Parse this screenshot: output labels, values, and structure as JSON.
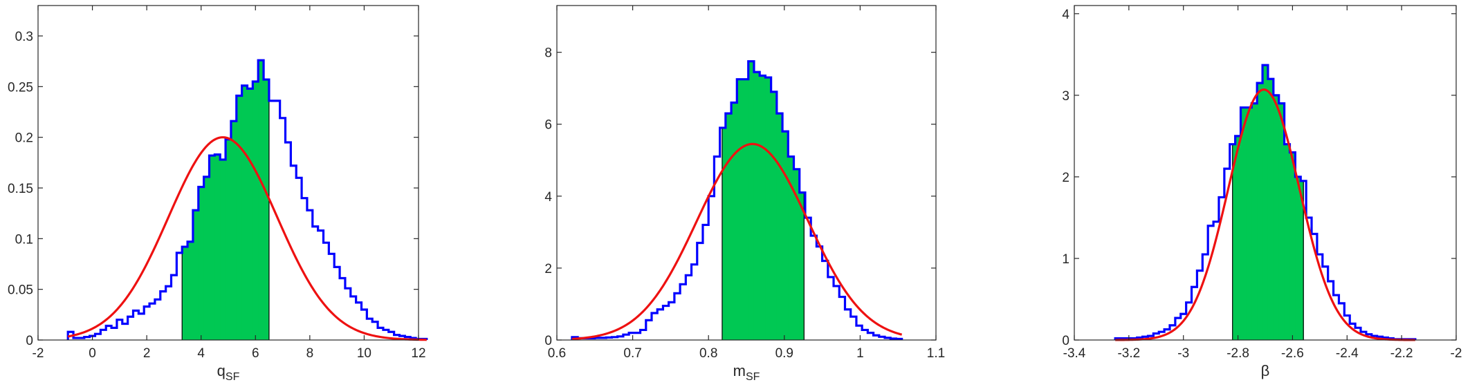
{
  "colors": {
    "histogram": "#0000ff",
    "fill": "#00c853",
    "fit": "#ee1111",
    "axis": "#262626"
  },
  "chart_data": [
    {
      "type": "bar",
      "xlabel_main": "q",
      "xlabel_sub": "SF",
      "xlim": [
        -2,
        12
      ],
      "ylim": [
        0,
        0.33
      ],
      "xticks": [
        -2,
        0,
        2,
        4,
        6,
        8,
        10,
        12
      ],
      "xtick_labels": [
        "-2",
        "0",
        "2",
        "4",
        "6",
        "8",
        "10",
        "12"
      ],
      "yticks": [
        0,
        0.05,
        0.1,
        0.15,
        0.2,
        0.25,
        0.3
      ],
      "ytick_labels": [
        "0",
        "0.05",
        "0.1",
        "0.15",
        "0.2",
        "0.25",
        "0.3"
      ],
      "bin_start": -0.9,
      "bin_width": 0.2,
      "values": [
        0.008,
        0.002,
        0.002,
        0.003,
        0.004,
        0.006,
        0.01,
        0.014,
        0.012,
        0.02,
        0.016,
        0.023,
        0.029,
        0.026,
        0.033,
        0.036,
        0.04,
        0.048,
        0.053,
        0.064,
        0.086,
        0.092,
        0.097,
        0.128,
        0.151,
        0.161,
        0.182,
        0.183,
        0.178,
        0.198,
        0.216,
        0.241,
        0.251,
        0.248,
        0.255,
        0.276,
        0.257,
        0.236,
        0.236,
        0.219,
        0.195,
        0.172,
        0.16,
        0.14,
        0.128,
        0.112,
        0.108,
        0.096,
        0.085,
        0.072,
        0.061,
        0.051,
        0.043,
        0.037,
        0.03,
        0.021,
        0.018,
        0.012,
        0.01,
        0.008,
        0.005,
        0.004,
        0.003,
        0.002,
        0.001,
        0.001
      ],
      "ci": [
        3.3,
        6.5
      ],
      "fit": {
        "mu": 4.8,
        "sigma": 2.0,
        "peak": 0.2
      }
    },
    {
      "type": "bar",
      "xlabel_main": "m",
      "xlabel_sub": "SF",
      "xlim": [
        0.6,
        1.1
      ],
      "ylim": [
        0,
        9.3
      ],
      "xticks": [
        0.6,
        0.7,
        0.8,
        0.9,
        1.0,
        1.1
      ],
      "xtick_labels": [
        "0.6",
        "0.7",
        "0.8",
        "0.9",
        "1",
        "1.1"
      ],
      "yticks": [
        0,
        2,
        4,
        6,
        8
      ],
      "ytick_labels": [
        "0",
        "2",
        "4",
        "6",
        "8"
      ],
      "bin_start": 0.62,
      "bin_width": 0.0075,
      "values": [
        0.08,
        0.05,
        0.05,
        0.05,
        0.06,
        0.06,
        0.07,
        0.08,
        0.1,
        0.15,
        0.2,
        0.2,
        0.28,
        0.55,
        0.75,
        0.85,
        0.95,
        1.05,
        1.3,
        1.55,
        1.8,
        2.1,
        2.7,
        3.2,
        4.0,
        5.1,
        5.9,
        6.3,
        6.6,
        7.25,
        7.25,
        7.75,
        7.45,
        7.35,
        7.3,
        6.9,
        6.3,
        5.8,
        5.1,
        4.75,
        4.1,
        3.4,
        2.9,
        2.6,
        2.2,
        1.75,
        1.5,
        1.2,
        0.85,
        0.65,
        0.4,
        0.28,
        0.2,
        0.13,
        0.09,
        0.06,
        0.04,
        0.03
      ],
      "ci": [
        0.818,
        0.926
      ],
      "fit": {
        "mu": 0.858,
        "sigma": 0.0735,
        "peak": 5.45
      }
    },
    {
      "type": "bar",
      "xlabel_main": "β",
      "xlabel_sub": "",
      "xlim": [
        -3.4,
        -2.0
      ],
      "ylim": [
        0,
        4.1
      ],
      "xticks": [
        -3.4,
        -3.2,
        -3.0,
        -2.8,
        -2.6,
        -2.4,
        -2.2,
        -2.0
      ],
      "xtick_labels": [
        "-3.4",
        "-3.2",
        "-3",
        "-2.8",
        "-2.6",
        "-2.4",
        "-2.2",
        "-2"
      ],
      "yticks": [
        0,
        1,
        2,
        3,
        4
      ],
      "ytick_labels": [
        "0",
        "1",
        "2",
        "3",
        "4"
      ],
      "bin_start": -3.25,
      "bin_width": 0.02,
      "values": [
        0.02,
        0.02,
        0.02,
        0.02,
        0.03,
        0.04,
        0.05,
        0.08,
        0.1,
        0.13,
        0.18,
        0.27,
        0.32,
        0.46,
        0.65,
        0.85,
        1.05,
        1.4,
        1.45,
        1.75,
        2.1,
        2.4,
        2.5,
        2.85,
        2.85,
        2.9,
        3.15,
        3.37,
        3.2,
        3.0,
        2.9,
        2.4,
        2.3,
        2.0,
        1.95,
        1.5,
        1.3,
        1.05,
        0.9,
        0.72,
        0.55,
        0.45,
        0.3,
        0.2,
        0.15,
        0.1,
        0.07,
        0.05,
        0.04,
        0.03,
        0.02,
        0.01,
        0.01,
        0.01,
        0.01
      ],
      "ci": [
        -2.82,
        -2.56
      ],
      "fit": {
        "mu": -2.705,
        "sigma": 0.13,
        "peak": 3.07
      }
    }
  ]
}
